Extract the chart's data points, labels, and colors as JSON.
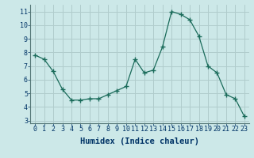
{
  "x": [
    0,
    1,
    2,
    3,
    4,
    5,
    6,
    7,
    8,
    9,
    10,
    11,
    12,
    13,
    14,
    15,
    16,
    17,
    18,
    19,
    20,
    21,
    22,
    23
  ],
  "y": [
    7.8,
    7.5,
    6.6,
    5.3,
    4.5,
    4.5,
    4.6,
    4.6,
    4.9,
    5.2,
    5.5,
    7.5,
    6.5,
    6.7,
    8.4,
    11.0,
    10.8,
    10.4,
    9.2,
    7.0,
    6.5,
    4.9,
    4.6,
    3.3
  ],
  "line_color": "#1a6b5a",
  "marker": "+",
  "marker_size": 4,
  "bg_color": "#cce8e8",
  "grid_color": "#b0cccc",
  "xlabel": "Humidex (Indice chaleur)",
  "xlabel_color": "#003366",
  "ylim": [
    2.8,
    11.5
  ],
  "xlim": [
    -0.5,
    23.5
  ],
  "yticks": [
    3,
    4,
    5,
    6,
    7,
    8,
    9,
    10,
    11
  ],
  "xticks": [
    0,
    1,
    2,
    3,
    4,
    5,
    6,
    7,
    8,
    9,
    10,
    11,
    12,
    13,
    14,
    15,
    16,
    17,
    18,
    19,
    20,
    21,
    22,
    23
  ],
  "tick_fontsize": 6,
  "xlabel_fontsize": 7.5
}
